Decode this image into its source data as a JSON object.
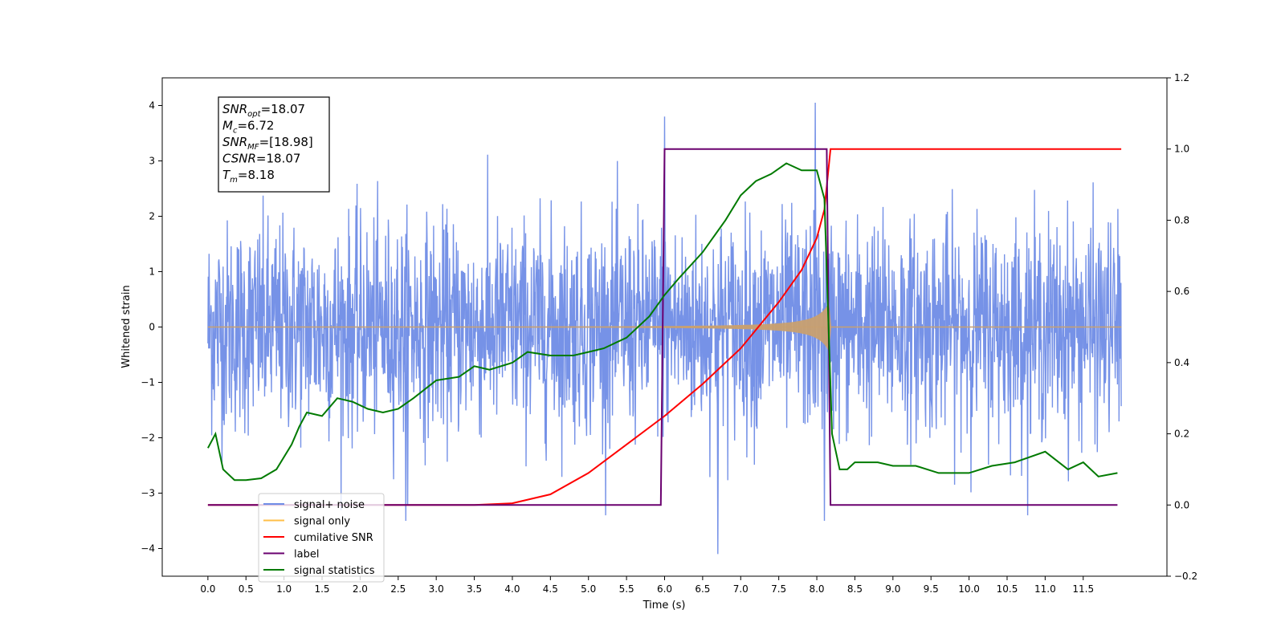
{
  "chart_data": {
    "type": "line",
    "xlabel": "Time (s)",
    "ylabel": "Whitened strain",
    "x_ticks": [
      "0.0",
      "0.5",
      "1.0",
      "1.5",
      "2.0",
      "2.5",
      "3.0",
      "3.5",
      "4.0",
      "4.5",
      "5.0",
      "5.5",
      "6.0",
      "6.5",
      "7.0",
      "7.5",
      "8.0",
      "8.5",
      "9.0",
      "9.5",
      "10.0",
      "10.5",
      "11.0",
      "11.5"
    ],
    "xlim": [
      -0.6,
      12.6
    ],
    "ylim_left": [
      -4.5,
      4.5
    ],
    "y_ticks_left": [
      "−4",
      "−3",
      "−2",
      "−1",
      "0",
      "1",
      "2",
      "3",
      "4"
    ],
    "ylim_right": [
      -0.2,
      1.2
    ],
    "y_ticks_right": [
      "−0.2",
      "0.0",
      "0.2",
      "0.4",
      "0.6",
      "0.8",
      "1.0",
      "1.2"
    ],
    "annotation": {
      "lines": [
        {
          "base": "SNR",
          "sub": "opt",
          "rest": "=18.07"
        },
        {
          "base": "M",
          "sub": "c",
          "rest": "=6.72"
        },
        {
          "base": "SNR",
          "sub": "MF",
          "rest": "=[18.98]"
        },
        {
          "base": "CSNR",
          "sub": "",
          "rest": "=18.07"
        },
        {
          "base": "T",
          "sub": "m",
          "rest": "=8.18"
        }
      ]
    },
    "legend": {
      "placement": "lower-left",
      "entries": [
        {
          "label": "signal+ noise",
          "color": "#6f8ce6"
        },
        {
          "label": "signal only",
          "color": "#ffbf47"
        },
        {
          "label": "cumilative SNR",
          "color": "#ff0000"
        },
        {
          "label": "label",
          "color": "#6a006f"
        },
        {
          "label": "signal statistics",
          "color": "#007a00"
        }
      ]
    },
    "series": [
      {
        "name": "signal+ noise",
        "axis": "left",
        "color": "#6f8ce6",
        "x_range": [
          0.0,
          12.0
        ],
        "envelope": 2.6,
        "extremes": [
          {
            "x": 6.0,
            "y": 3.8
          },
          {
            "x": 6.7,
            "y": -4.1
          },
          {
            "x": 7.98,
            "y": 4.05
          },
          {
            "x": 8.1,
            "y": -3.5
          },
          {
            "x": 2.6,
            "y": -3.5
          }
        ]
      },
      {
        "name": "signal only",
        "axis": "left",
        "color": "#c8a070",
        "x_range": [
          0.0,
          12.0
        ],
        "chirp_start": 3.5,
        "chirp_end": 8.18,
        "peak_amplitude": 1.1
      },
      {
        "name": "cumilative SNR",
        "axis": "right",
        "color": "#ff0000",
        "x": [
          0.0,
          3.5,
          4.0,
          4.5,
          5.0,
          5.5,
          6.0,
          6.5,
          7.0,
          7.5,
          7.8,
          8.0,
          8.1,
          8.18,
          12.0
        ],
        "y": [
          0.0,
          0.0,
          0.005,
          0.03,
          0.09,
          0.17,
          0.25,
          0.34,
          0.44,
          0.57,
          0.66,
          0.75,
          0.83,
          1.0,
          1.0
        ]
      },
      {
        "name": "label",
        "axis": "right",
        "color": "#6a006f",
        "x": [
          0.0,
          5.95,
          6.0,
          8.13,
          8.18,
          11.95
        ],
        "y": [
          0.0,
          0.0,
          1.0,
          1.0,
          0.0,
          0.0
        ]
      },
      {
        "name": "signal statistics",
        "axis": "right",
        "color": "#007a00",
        "x": [
          0.0,
          0.1,
          0.2,
          0.35,
          0.5,
          0.7,
          0.9,
          1.1,
          1.2,
          1.3,
          1.5,
          1.7,
          1.9,
          2.1,
          2.3,
          2.5,
          2.7,
          3.0,
          3.3,
          3.5,
          3.7,
          4.0,
          4.2,
          4.5,
          4.8,
          5.0,
          5.2,
          5.5,
          5.8,
          6.0,
          6.2,
          6.5,
          6.8,
          7.0,
          7.2,
          7.4,
          7.6,
          7.8,
          8.0,
          8.1,
          8.2,
          8.3,
          8.4,
          8.5,
          8.8,
          9.0,
          9.3,
          9.6,
          10.0,
          10.3,
          10.6,
          11.0,
          11.3,
          11.5,
          11.7,
          11.95
        ],
        "y": [
          0.16,
          0.2,
          0.1,
          0.07,
          0.07,
          0.075,
          0.1,
          0.17,
          0.22,
          0.26,
          0.25,
          0.3,
          0.29,
          0.27,
          0.26,
          0.27,
          0.3,
          0.35,
          0.36,
          0.39,
          0.38,
          0.4,
          0.43,
          0.42,
          0.42,
          0.43,
          0.44,
          0.47,
          0.53,
          0.59,
          0.64,
          0.71,
          0.8,
          0.87,
          0.91,
          0.93,
          0.96,
          0.94,
          0.94,
          0.86,
          0.2,
          0.1,
          0.1,
          0.12,
          0.12,
          0.11,
          0.11,
          0.09,
          0.09,
          0.11,
          0.12,
          0.15,
          0.1,
          0.12,
          0.08,
          0.09
        ]
      }
    ]
  }
}
